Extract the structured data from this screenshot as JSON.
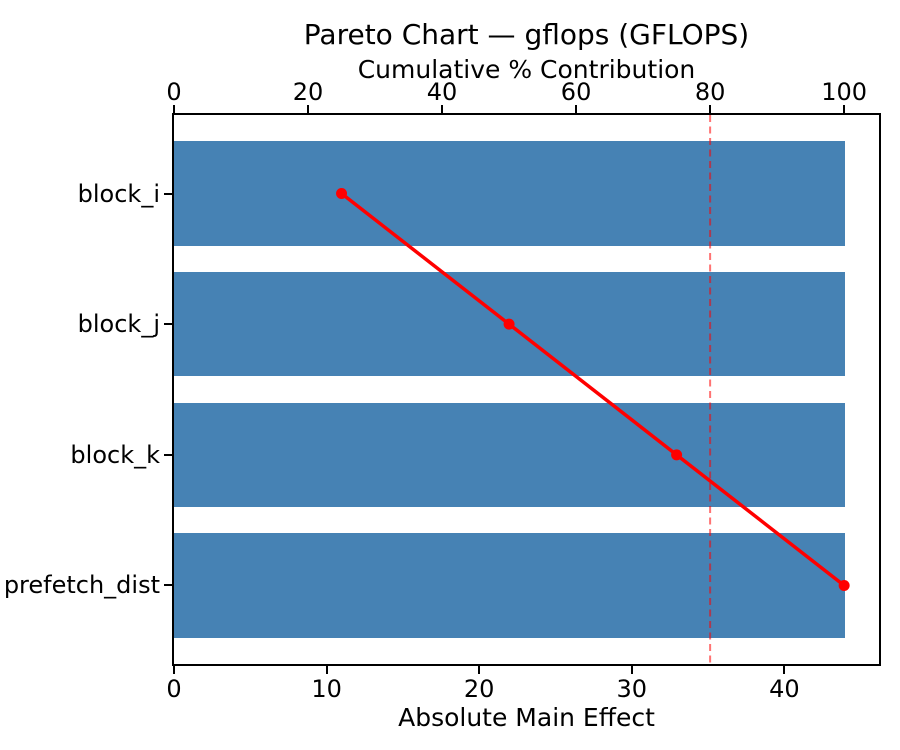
{
  "figure": {
    "background": "#ffffff"
  },
  "chart_data": {
    "type": "bar",
    "subtype": "pareto-horizontal-bars-with-cumulative-line",
    "title": "Pareto Chart — gflops (GFLOPS)",
    "categories": [
      "block_i",
      "block_j",
      "block_k",
      "prefetch_dist"
    ],
    "series": [
      {
        "name": "Absolute Main Effect",
        "type": "bar",
        "orientation": "horizontal",
        "values": [
          44,
          44,
          44,
          44
        ],
        "color": "#4682B4"
      },
      {
        "name": "Cumulative % Contribution",
        "type": "line",
        "values": [
          25,
          50,
          75,
          100
        ],
        "color": "#ff0000",
        "marker": "circle"
      }
    ],
    "bottom_axis": {
      "label": "Absolute Main Effect",
      "ticks": [
        0,
        10,
        20,
        30,
        40
      ],
      "range": [
        0,
        46.2
      ]
    },
    "top_axis": {
      "label": "Cumulative % Contribution",
      "ticks": [
        0,
        20,
        40,
        60,
        80,
        100
      ],
      "range": [
        0,
        105.2
      ]
    },
    "reference_line": {
      "value": 80,
      "axis": "top",
      "style": "dashed",
      "color": "#ff0000",
      "opacity": 0.55
    },
    "grid": false,
    "legend": false,
    "spine_color": "#000000"
  }
}
